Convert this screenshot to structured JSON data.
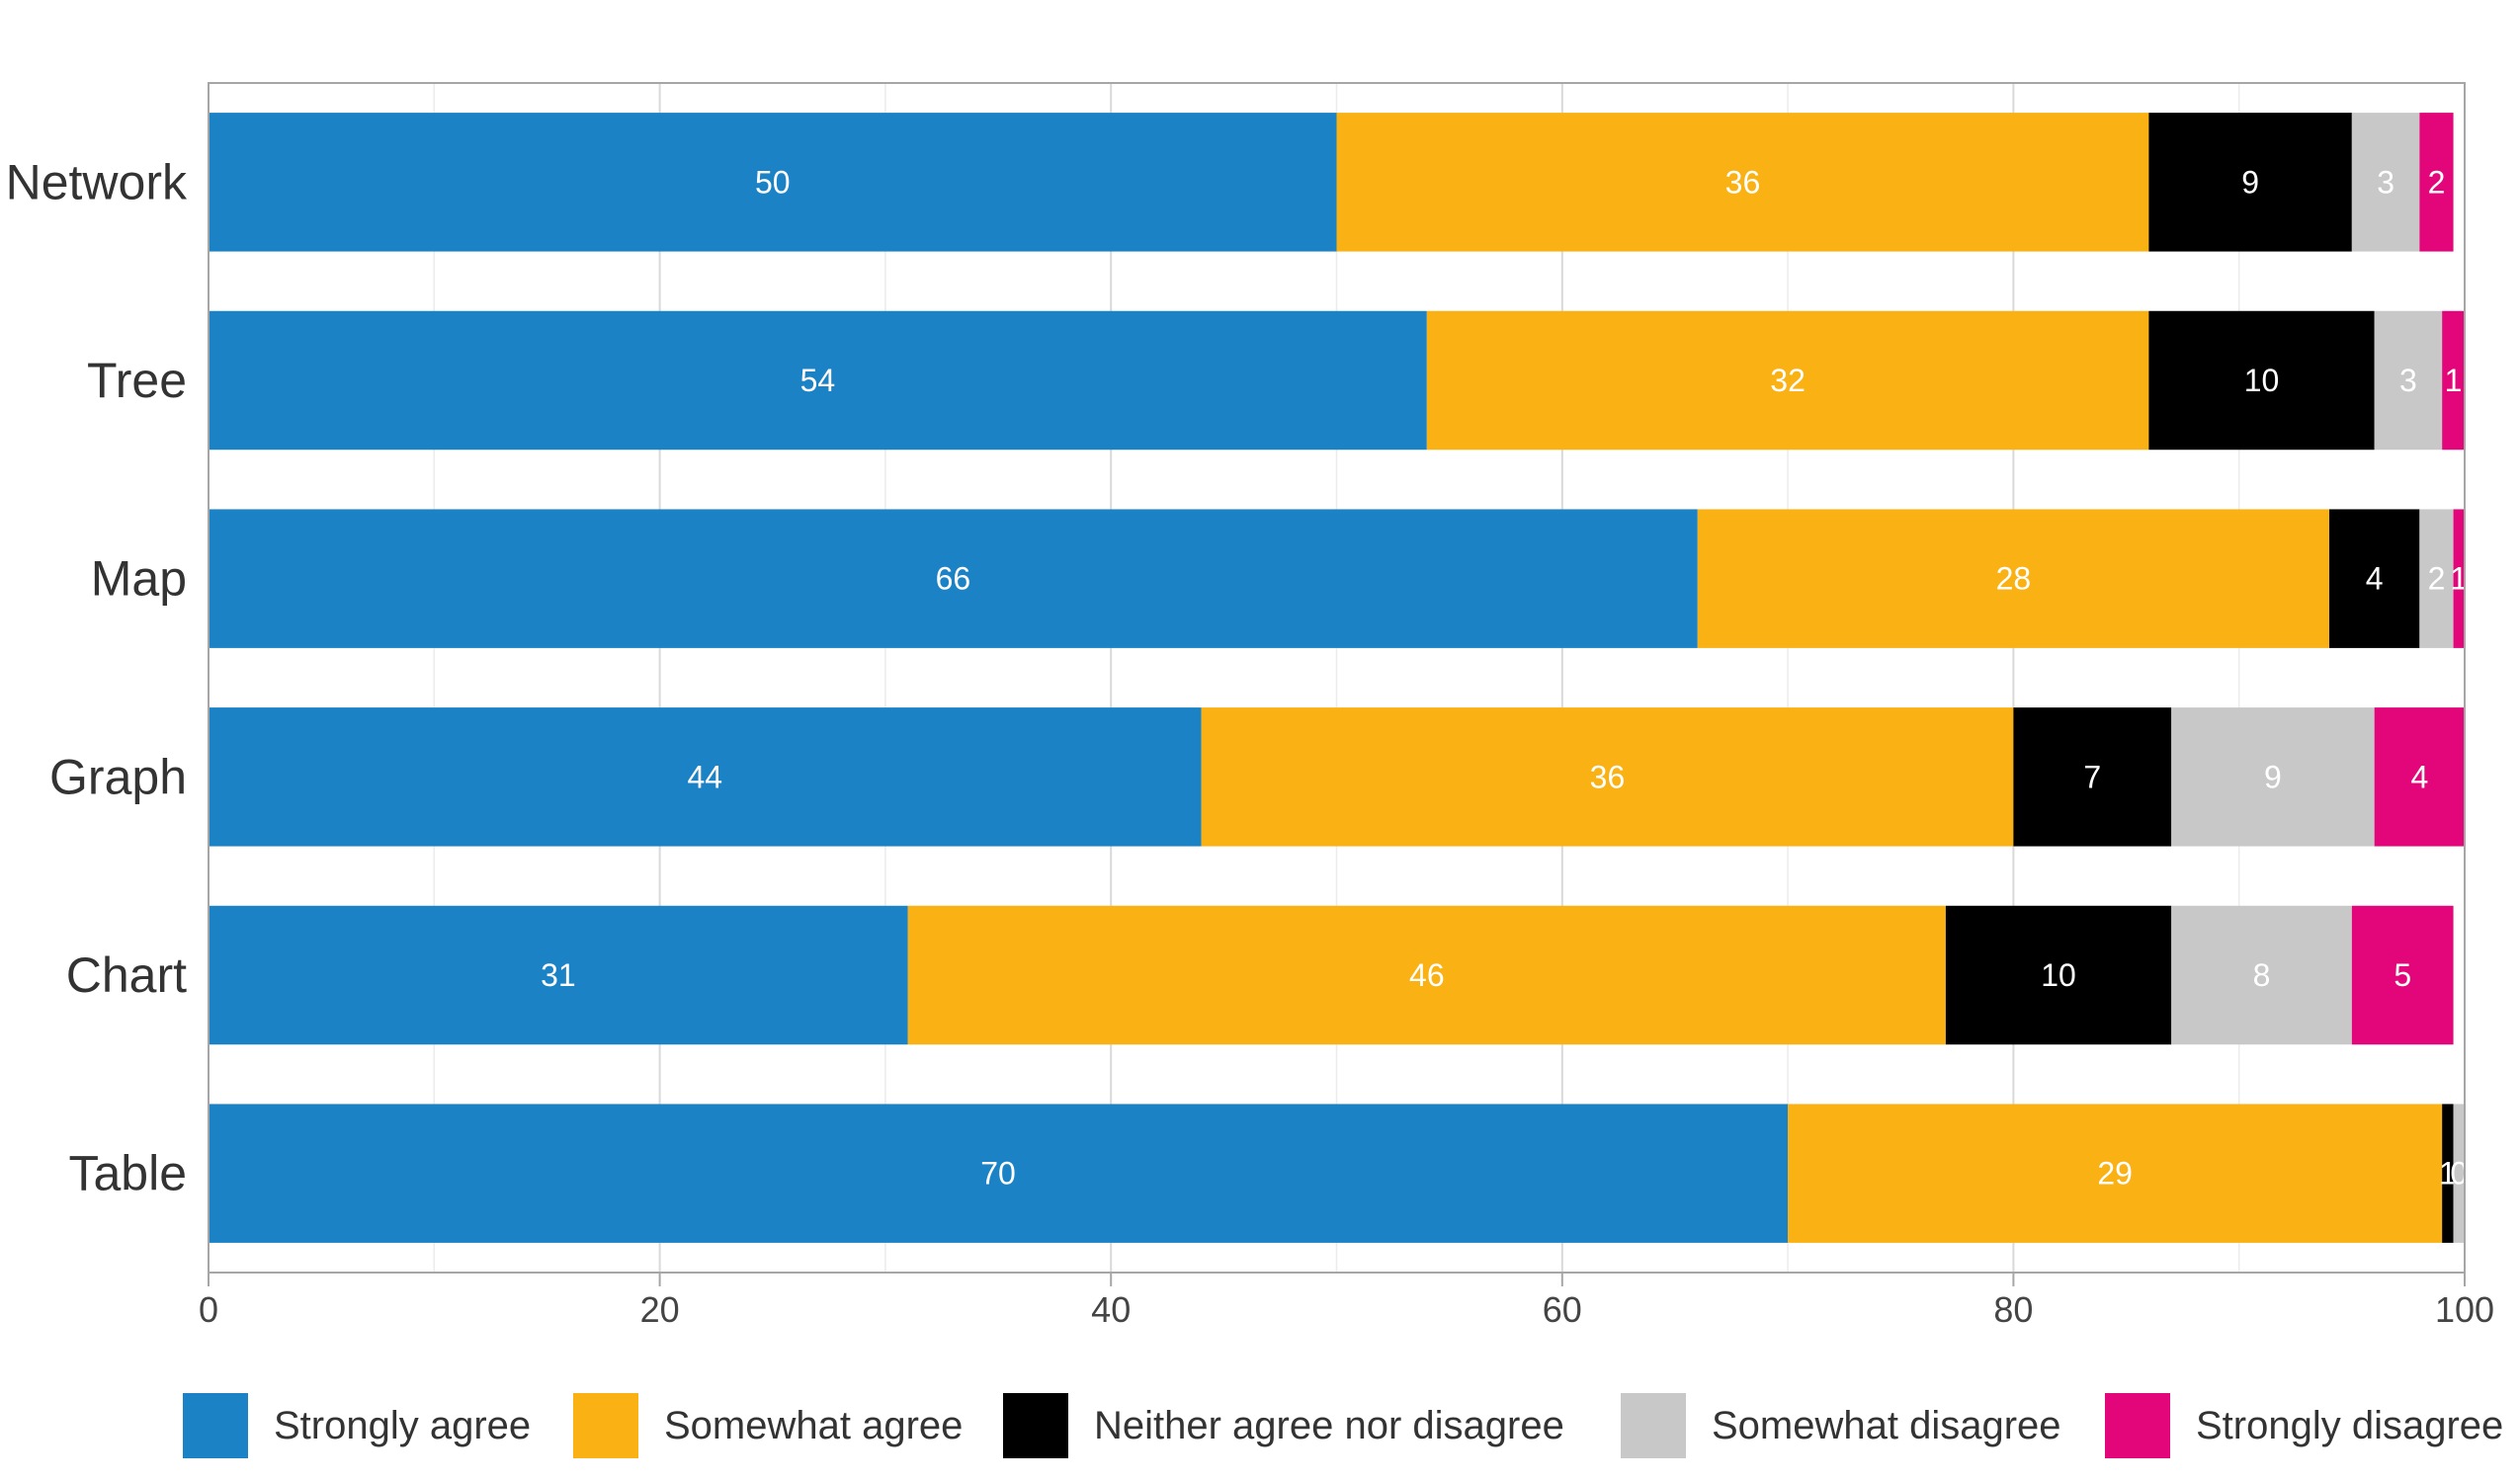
{
  "chart_data": {
    "type": "bar",
    "orientation": "horizontal",
    "stacked": true,
    "title": "",
    "xlabel": "",
    "ylabel": "",
    "xlim": [
      0,
      100
    ],
    "x_ticks": [
      "0",
      "20",
      "40",
      "60",
      "80",
      "100"
    ],
    "grid": true,
    "legend_position": "bottom",
    "categories": [
      "Network",
      "Tree",
      "Map",
      "Graph",
      "Chart",
      "Table"
    ],
    "series": [
      {
        "name": "Strongly agree",
        "color": "#1b82c6",
        "label_color": "#ffffff",
        "values": [
          50,
          54,
          66,
          44,
          31,
          70
        ],
        "labels": [
          "50",
          "54",
          "66",
          "44",
          "31",
          "70"
        ]
      },
      {
        "name": "Somewhat agree",
        "color": "#fab114",
        "label_color": "#ffffff",
        "values": [
          36,
          32,
          28,
          36,
          46,
          29
        ],
        "labels": [
          "36",
          "32",
          "28",
          "36",
          "46",
          "29"
        ]
      },
      {
        "name": "Neither agree nor disagree",
        "color": "#000000",
        "label_color": "#ffffff",
        "values": [
          9,
          10,
          4,
          7,
          10,
          0.5
        ],
        "labels": [
          "9",
          "10",
          "4",
          "7",
          "10",
          "1"
        ]
      },
      {
        "name": "Somewhat disagree",
        "color": "#c8c8c8",
        "label_color": "#ffffff",
        "values": [
          3,
          3,
          1.5,
          9,
          8,
          0.5
        ],
        "labels": [
          "3",
          "3",
          "2",
          "9",
          "8",
          "0"
        ]
      },
      {
        "name": "Strongly disagree",
        "color": "#e2067a",
        "label_color": "#ffffff",
        "values": [
          1.5,
          1,
          0.5,
          4,
          4.5,
          0
        ],
        "labels": [
          "2",
          "1",
          "1",
          "4",
          "5",
          ""
        ]
      }
    ]
  }
}
